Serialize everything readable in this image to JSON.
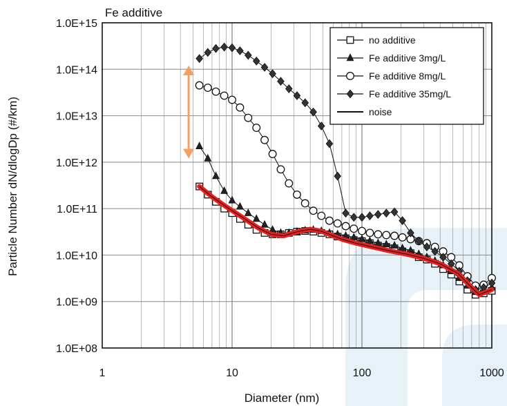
{
  "chart_data": {
    "type": "line",
    "title": "Fe additive",
    "xlabel": "Diameter (nm)",
    "ylabel": "Particle Number dN/dlogDp  (#/km)",
    "x_scale": "log",
    "y_scale": "log",
    "xlim": [
      1,
      1000
    ],
    "ylim": [
      100000000.0,
      1000000000000000.0
    ],
    "x_ticks": [
      1,
      10,
      100,
      1000
    ],
    "x_tick_labels": [
      "1",
      "10",
      "100",
      "1000"
    ],
    "y_ticks": [
      100000000.0,
      1000000000.0,
      10000000000.0,
      100000000000.0,
      1000000000000.0,
      10000000000000.0,
      100000000000000.0,
      1000000000000000.0
    ],
    "y_tick_labels": [
      "1.0E+08",
      "1.0E+09",
      "1.0E+10",
      "1.0E+11",
      "1.0E+12",
      "1.0E+13",
      "1.0E+14",
      "1.0E+15"
    ],
    "grid": true,
    "legend_position": "top-right",
    "series": [
      {
        "name": "no additive",
        "marker": "square-open",
        "x": [
          5.6,
          6.5,
          7.5,
          8.7,
          10,
          11.5,
          13.3,
          15.4,
          17.8,
          20.5,
          23.7,
          27.4,
          31.6,
          36.5,
          42.2,
          48.7,
          56.2,
          64.9,
          75,
          86.6,
          100,
          115,
          133,
          154,
          178,
          205,
          237,
          274,
          316,
          365,
          422,
          487,
          562,
          649,
          750,
          866,
          1000
        ],
        "y": [
          300000000000.0,
          200000000000.0,
          140000000000.0,
          100000000000.0,
          80000000000.0,
          60000000000.0,
          45000000000.0,
          35000000000.0,
          30000000000.0,
          28000000000.0,
          28000000000.0,
          30000000000.0,
          32000000000.0,
          33000000000.0,
          32000000000.0,
          30000000000.0,
          28000000000.0,
          25000000000.0,
          23000000000.0,
          21000000000.0,
          20000000000.0,
          18000000000.0,
          16000000000.0,
          15000000000.0,
          14000000000.0,
          12000000000.0,
          11000000000.0,
          9000000000.0,
          8000000000.0,
          6500000000.0,
          5000000000.0,
          3800000000.0,
          2700000000.0,
          1800000000.0,
          1400000000.0,
          1500000000.0,
          1700000000.0
        ]
      },
      {
        "name": "Fe additive 3mg/L",
        "marker": "triangle-filled",
        "x": [
          5.6,
          6.5,
          7.5,
          8.7,
          10,
          11.5,
          13.3,
          15.4,
          17.8,
          20.5,
          23.7,
          27.4,
          31.6,
          36.5,
          42.2,
          48.7,
          56.2,
          64.9,
          75,
          86.6,
          100,
          115,
          133,
          154,
          178,
          205,
          237,
          274,
          316,
          365,
          422,
          487,
          562,
          649,
          750,
          866,
          1000
        ],
        "y": [
          2200000000000.0,
          1200000000000.0,
          500000000000.0,
          240000000000.0,
          150000000000.0,
          110000000000.0,
          80000000000.0,
          60000000000.0,
          45000000000.0,
          35000000000.0,
          30000000000.0,
          30000000000.0,
          32000000000.0,
          34000000000.0,
          35000000000.0,
          33000000000.0,
          30000000000.0,
          28000000000.0,
          26000000000.0,
          24000000000.0,
          22000000000.0,
          20000000000.0,
          18000000000.0,
          17000000000.0,
          16000000000.0,
          14000000000.0,
          12500000000.0,
          10500000000.0,
          9000000000.0,
          7500000000.0,
          6000000000.0,
          4500000000.0,
          3200000000.0,
          2200000000.0,
          1600000000.0,
          1700000000.0,
          2000000000.0
        ]
      },
      {
        "name": "Fe additive 8mg/L",
        "marker": "circle-open",
        "x": [
          5.6,
          6.5,
          7.5,
          8.7,
          10,
          11.5,
          13.3,
          15.4,
          17.8,
          20.5,
          23.7,
          27.4,
          31.6,
          36.5,
          42.2,
          48.7,
          56.2,
          64.9,
          75,
          86.6,
          100,
          115,
          133,
          154,
          178,
          205,
          237,
          274,
          316,
          365,
          422,
          487,
          562,
          649,
          750,
          866,
          1000
        ],
        "y": [
          45000000000000.0,
          40000000000000.0,
          33000000000000.0,
          27000000000000.0,
          22000000000000.0,
          15000000000000.0,
          9000000000000.0,
          5500000000000.0,
          3000000000000.0,
          1500000000000.0,
          700000000000.0,
          350000000000.0,
          200000000000.0,
          130000000000.0,
          90000000000.0,
          70000000000.0,
          55000000000.0,
          48000000000.0,
          42000000000.0,
          37000000000.0,
          33000000000.0,
          30000000000.0,
          28000000000.0,
          27000000000.0,
          26000000000.0,
          24000000000.0,
          22000000000.0,
          20000000000.0,
          18000000000.0,
          15000000000.0,
          12000000000.0,
          9000000000.0,
          6000000000.0,
          3500000000.0,
          2200000000.0,
          2300000000.0,
          3200000000.0
        ]
      },
      {
        "name": "Fe additive 35mg/L",
        "marker": "diamond-filled",
        "x": [
          5.6,
          6.5,
          7.5,
          8.7,
          10,
          11.5,
          13.3,
          15.4,
          17.8,
          20.5,
          23.7,
          27.4,
          31.6,
          36.5,
          42.2,
          48.7,
          56.2,
          64.9,
          75,
          86.6,
          100,
          115,
          133,
          154,
          178,
          205,
          237,
          274,
          316,
          365,
          422,
          487,
          562,
          649,
          750,
          866,
          1000
        ],
        "y": [
          170000000000000.0,
          230000000000000.0,
          280000000000000.0,
          300000000000000.0,
          290000000000000.0,
          250000000000000.0,
          200000000000000.0,
          150000000000000.0,
          110000000000000.0,
          80000000000000.0,
          55000000000000.0,
          38000000000000.0,
          27000000000000.0,
          19000000000000.0,
          12000000000000.0,
          6000000000000.0,
          2500000000000.0,
          500000000000.0,
          80000000000.0,
          65000000000.0,
          65000000000.0,
          70000000000.0,
          75000000000.0,
          80000000000.0,
          85000000000.0,
          55000000000.0,
          30000000000.0,
          20000000000.0,
          15000000000.0,
          12000000000.0,
          9000000000.0,
          6500000000.0,
          4500000000.0,
          2800000000.0,
          1800000000.0,
          2000000000.0,
          2500000000.0
        ]
      },
      {
        "name": "noise",
        "marker": "none",
        "x": [
          5.6,
          7,
          9,
          12,
          16,
          20,
          25,
          32,
          40,
          48,
          56,
          70,
          90,
          120,
          160,
          220,
          300,
          400,
          550,
          700,
          800,
          900,
          1000
        ],
        "y": [
          300000000000.0,
          180000000000.0,
          110000000000.0,
          65000000000.0,
          38000000000.0,
          28000000000.0,
          26000000000.0,
          32000000000.0,
          36000000000.0,
          33000000000.0,
          28000000000.0,
          22000000000.0,
          18000000000.0,
          15000000000.0,
          12500000000.0,
          10500000000.0,
          8500000000.0,
          6500000000.0,
          4000000000.0,
          2000000000.0,
          1400000000.0,
          1600000000.0,
          1800000000.0
        ]
      }
    ],
    "annotations": [
      {
        "type": "double-arrow",
        "x": 4.3,
        "y_from": 120000000000000.0,
        "y_to": 1200000000000.0
      }
    ],
    "colors": {
      "plot_series": "#111111",
      "noise_overlay": "#e8201f",
      "annotation_arrow": "#f5a060",
      "watermark": "#e6f1f8"
    }
  }
}
